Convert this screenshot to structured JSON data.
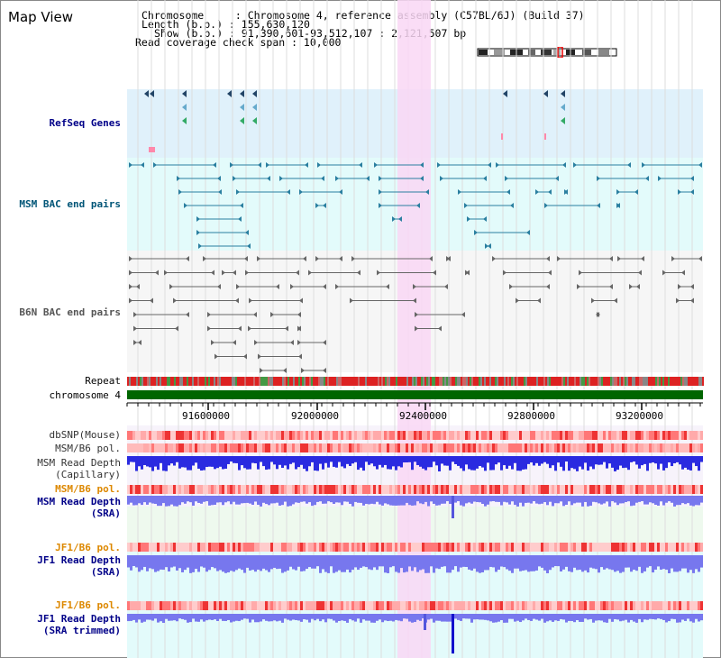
{
  "panel": {
    "title": "Map View"
  },
  "header": {
    "line1": "Chromosome     : Chromosome 4, reference assembly (C57BL/6J) (Build 37)",
    "line2": "Length (b.p.) : 155,630,120",
    "line3": "Show (b.p.) : 91,390,601-93,512,107 : 2,121,507 bp",
    "line4": "Read coverage check span : 10,000"
  },
  "tracks": {
    "refseq": "RefSeq Genes",
    "msm_bac": "MSM BAC end pairs",
    "b6n_bac": "B6N BAC end pairs",
    "repeat": "Repeat",
    "chromosome": "chromosome 4",
    "dbsnp": "dbSNP(Mouse)",
    "msm_b6_pol": "MSM/B6 pol.",
    "msm_depth_cap_1": "MSM Read Depth",
    "msm_depth_cap_2": "(Capillary)",
    "msm_b6_pol_2": "MSM/B6 pol.",
    "msm_depth_sra_1": "MSM Read Depth",
    "msm_depth_sra_2": "(SRA)",
    "jf1_b6_pol": "JF1/B6 pol.",
    "jf1_depth_sra_1": "JF1 Read Depth",
    "jf1_depth_sra_2": "(SRA)",
    "jf1_b6_pol_2": "JF1/B6 pol.",
    "jf1_depth_trim_1": "JF1 Read Depth",
    "jf1_depth_trim_2": "(SRA trimmed)"
  },
  "axis": {
    "ticks": [
      "91600000",
      "92000000",
      "92400000",
      "92800000",
      "93200000"
    ]
  },
  "colors": {
    "refseq_bg": "#e0f1fb",
    "msm_bg": "#e3fbfb",
    "b6n_bg": "#f6f6f6",
    "highlight": "#f9d7f5",
    "chromosome": "#006600",
    "label_blue": "#000088",
    "label_teal": "#005577",
    "label_orange": "#dd8800",
    "depth_blue": "#2a2ae0",
    "depth_light": "#7777ee"
  }
}
